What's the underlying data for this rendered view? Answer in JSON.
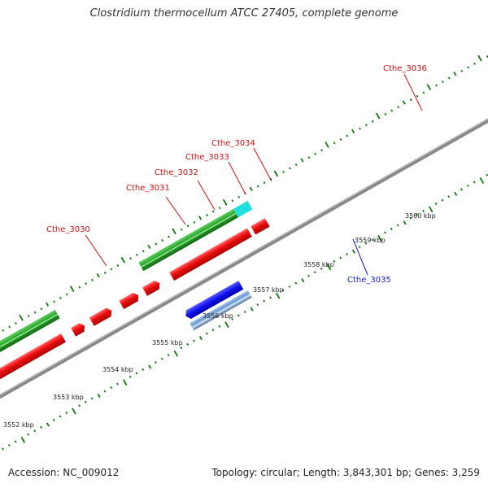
{
  "title": "Clostridium thermocellum ATCC 27405, complete genome",
  "footer": {
    "accession": "Accession: NC_009012",
    "summary": "Topology: circular; Length: 3,843,301 bp; Genes: 3,259"
  },
  "colors": {
    "forward_cds": "#ee1111",
    "reverse_cds": "#1111ee",
    "reverse_other": "#6699cc",
    "forward_other": "#22aa22",
    "cyan_feature": "#22dddd",
    "backbone": "#888888",
    "ticks": "#117711"
  },
  "gene_labels": [
    {
      "id": "cthe3030",
      "text": "Cthe_3030",
      "strand": "forward"
    },
    {
      "id": "cthe3031",
      "text": "Cthe_3031",
      "strand": "forward"
    },
    {
      "id": "cthe3032",
      "text": "Cthe_3032",
      "strand": "forward"
    },
    {
      "id": "cthe3033",
      "text": "Cthe_3033",
      "strand": "forward"
    },
    {
      "id": "cthe3034",
      "text": "Cthe_3034",
      "strand": "forward"
    },
    {
      "id": "cthe3035",
      "text": "Cthe_3035",
      "strand": "reverse"
    },
    {
      "id": "cthe3036",
      "text": "Cthe_3036",
      "strand": "forward"
    }
  ],
  "kbp_labels": [
    "3552 kbp",
    "3553 kbp",
    "3554 kbp",
    "3555 kbp",
    "3556 kbp",
    "3557 kbp",
    "3558 kbp",
    "3559 kbp",
    "3560 kbp"
  ]
}
